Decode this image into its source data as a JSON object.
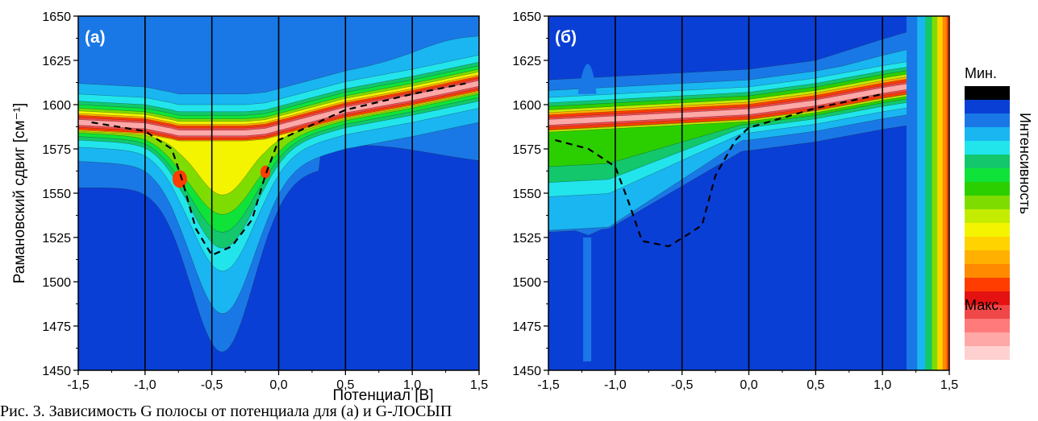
{
  "chart_data": [
    {
      "type": "heatmap",
      "panel_label": "(a)",
      "xlabel": "",
      "ylabel": "Рамановский сдвиг [см⁻¹]",
      "xlim": [
        -1.5,
        1.5
      ],
      "ylim": [
        1450,
        1650
      ],
      "xticks": [
        "-1,5",
        "-1,0",
        "-0,5",
        "0,0",
        "0,5",
        "1,0",
        "1,5"
      ],
      "yticks": [
        "1450",
        "1475",
        "1500",
        "1525",
        "1550",
        "1575",
        "1600",
        "1625",
        "1650"
      ],
      "vertical_lines_x": [
        -1.0,
        -0.5,
        0.0,
        0.5,
        1.0
      ],
      "main_band": {
        "x": [
          -1.5,
          -1.0,
          -0.8,
          -0.75,
          -0.5,
          -0.25,
          -0.1,
          0.0,
          0.5,
          1.0,
          1.5
        ],
        "center": [
          1590,
          1588,
          1585,
          1584,
          1584,
          1584,
          1585,
          1587,
          1597,
          1604,
          1612
        ]
      },
      "dashed_curve": {
        "x": [
          -1.4,
          -1.0,
          -0.8,
          -0.72,
          -0.62,
          -0.5,
          -0.35,
          -0.2,
          -0.1,
          0.0,
          0.5,
          1.0,
          1.4
        ],
        "y": [
          1590,
          1585,
          1575,
          1557,
          1530,
          1515,
          1520,
          1535,
          1560,
          1580,
          1597,
          1606,
          1612
        ]
      },
      "grid": false
    },
    {
      "type": "heatmap",
      "panel_label": "(б)",
      "xlabel": "",
      "ylabel": "",
      "xlim": [
        -1.5,
        1.5
      ],
      "ylim": [
        1450,
        1650
      ],
      "xticks": [
        "-1,5",
        "-1,0",
        "-0,5",
        "0,0",
        "0,5",
        "1,0",
        "1,5"
      ],
      "yticks": [
        "1450",
        "1475",
        "1500",
        "1525",
        "1550",
        "1575",
        "1600",
        "1625",
        "1650"
      ],
      "vertical_lines_x": [
        -1.0,
        -0.5,
        0.0,
        0.5,
        1.0
      ],
      "main_band": {
        "x": [
          -1.5,
          -1.0,
          -0.5,
          0.0,
          0.5,
          1.0,
          1.5
        ],
        "center": [
          1590,
          1592,
          1594,
          1596,
          1601,
          1608,
          1614
        ]
      },
      "dashed_curve": {
        "x": [
          -1.45,
          -1.2,
          -1.0,
          -0.9,
          -0.8,
          -0.6,
          -0.45,
          -0.35,
          -0.25,
          -0.1,
          0.0,
          0.5,
          1.0
        ],
        "y": [
          1580,
          1575,
          1565,
          1545,
          1523,
          1520,
          1527,
          1532,
          1560,
          1580,
          1587,
          1598,
          1606
        ]
      },
      "grid": false
    }
  ],
  "shared_xlabel": "Потенциал [В]",
  "colorbar": {
    "title": "Интенсивность",
    "min_label": "Мин.",
    "max_label": "Макс.",
    "colors": [
      "#000000",
      "#0a3fd6",
      "#1a78e6",
      "#19b6f2",
      "#22e5ec",
      "#12c76c",
      "#0fe33a",
      "#2bcf00",
      "#7fdc00",
      "#c4ec00",
      "#f4f400",
      "#ffd300",
      "#ffb000",
      "#ff8a00",
      "#ff3d00",
      "#e51212",
      "#f04848",
      "#ff7b7b",
      "#ffa8a8",
      "#ffd0d0"
    ]
  },
  "caption": "Рис. 3. Зависимость G полосы от потенциала для (а) и G-ЛОСЫП"
}
